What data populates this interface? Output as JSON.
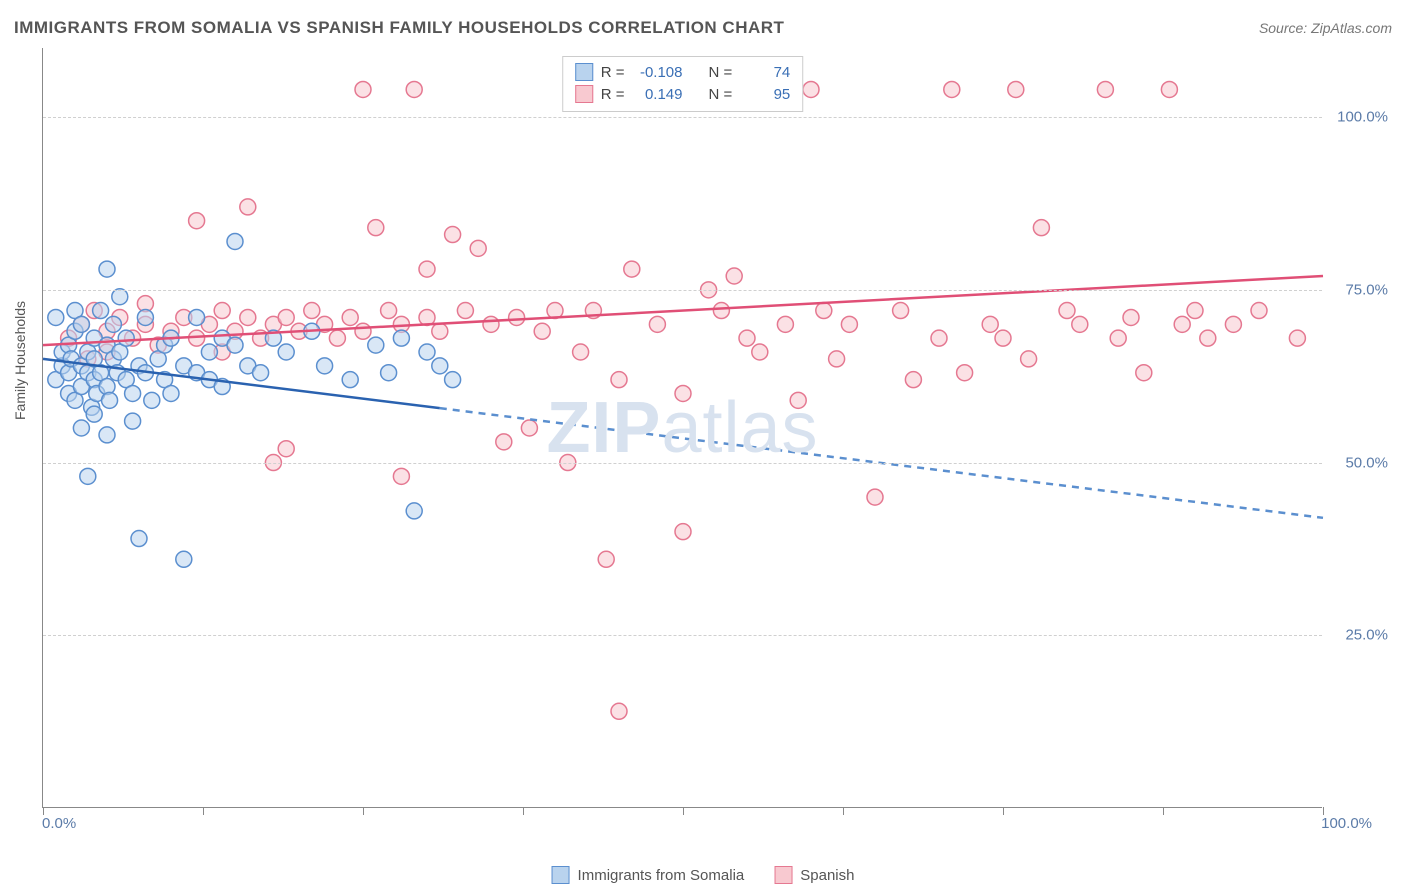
{
  "title": "IMMIGRANTS FROM SOMALIA VS SPANISH FAMILY HOUSEHOLDS CORRELATION CHART",
  "source": "Source: ZipAtlas.com",
  "watermark_a": "ZIP",
  "watermark_b": "atlas",
  "y_axis_label": "Family Households",
  "chart": {
    "type": "scatter",
    "xlim": [
      0,
      100
    ],
    "ylim": [
      0,
      110
    ],
    "x_ticks": [
      0,
      12.5,
      25,
      37.5,
      50,
      62.5,
      75,
      87.5,
      100
    ],
    "y_gridlines": [
      25,
      50,
      75,
      100
    ],
    "y_tick_labels": [
      "25.0%",
      "50.0%",
      "75.0%",
      "100.0%"
    ],
    "x_tick_labels": {
      "left": "0.0%",
      "right": "100.0%"
    },
    "background_color": "#ffffff",
    "grid_color": "#d0d0d0",
    "axis_color": "#888888",
    "marker_radius": 8,
    "marker_stroke_width": 1.5,
    "line_width": 2.5,
    "series": {
      "somalia": {
        "label": "Immigrants from Somalia",
        "fill": "#b9d3ee",
        "stroke": "#5b8fcf",
        "line_color": "#2a62b0",
        "dash_line_color": "#5b8fcf",
        "trend": {
          "x1": 0,
          "y1": 65,
          "x2": 100,
          "y2": 42
        },
        "solid_until_x": 31,
        "points": [
          [
            1,
            71
          ],
          [
            1,
            62
          ],
          [
            1.5,
            64
          ],
          [
            1.5,
            66
          ],
          [
            2,
            63
          ],
          [
            2,
            67
          ],
          [
            2,
            60
          ],
          [
            2.2,
            65
          ],
          [
            2.5,
            59
          ],
          [
            2.5,
            69
          ],
          [
            2.5,
            72
          ],
          [
            3,
            55
          ],
          [
            3,
            64
          ],
          [
            3,
            70
          ],
          [
            3,
            61
          ],
          [
            3.5,
            63
          ],
          [
            3.5,
            48
          ],
          [
            3.5,
            66
          ],
          [
            3.8,
            58
          ],
          [
            4,
            62
          ],
          [
            4,
            57
          ],
          [
            4,
            68
          ],
          [
            4,
            65
          ],
          [
            4.2,
            60
          ],
          [
            4.5,
            72
          ],
          [
            4.5,
            63
          ],
          [
            5,
            78
          ],
          [
            5,
            67
          ],
          [
            5,
            54
          ],
          [
            5,
            61
          ],
          [
            5.2,
            59
          ],
          [
            5.5,
            70
          ],
          [
            5.5,
            65
          ],
          [
            5.8,
            63
          ],
          [
            6,
            74
          ],
          [
            6,
            66
          ],
          [
            6.5,
            62
          ],
          [
            6.5,
            68
          ],
          [
            7,
            56
          ],
          [
            7,
            60
          ],
          [
            7.5,
            39
          ],
          [
            7.5,
            64
          ],
          [
            8,
            63
          ],
          [
            8,
            71
          ],
          [
            8.5,
            59
          ],
          [
            9,
            65
          ],
          [
            9.5,
            67
          ],
          [
            9.5,
            62
          ],
          [
            10,
            60
          ],
          [
            10,
            68
          ],
          [
            11,
            36
          ],
          [
            11,
            64
          ],
          [
            12,
            71
          ],
          [
            12,
            63
          ],
          [
            13,
            66
          ],
          [
            13,
            62
          ],
          [
            14,
            68
          ],
          [
            14,
            61
          ],
          [
            15,
            82
          ],
          [
            15,
            67
          ],
          [
            16,
            64
          ],
          [
            17,
            63
          ],
          [
            18,
            68
          ],
          [
            19,
            66
          ],
          [
            21,
            69
          ],
          [
            22,
            64
          ],
          [
            24,
            62
          ],
          [
            26,
            67
          ],
          [
            27,
            63
          ],
          [
            28,
            68
          ],
          [
            29,
            43
          ],
          [
            30,
            66
          ],
          [
            31,
            64
          ],
          [
            32,
            62
          ]
        ]
      },
      "spanish": {
        "label": "Spanish",
        "fill": "#f8c9d0",
        "stroke": "#e57891",
        "line_color": "#e04f76",
        "trend": {
          "x1": 0,
          "y1": 67,
          "x2": 100,
          "y2": 77
        },
        "points": [
          [
            2,
            68
          ],
          [
            3,
            70
          ],
          [
            3.5,
            65
          ],
          [
            4,
            72
          ],
          [
            5,
            69
          ],
          [
            5,
            66
          ],
          [
            6,
            71
          ],
          [
            7,
            68
          ],
          [
            8,
            70
          ],
          [
            8,
            73
          ],
          [
            9,
            67
          ],
          [
            10,
            69
          ],
          [
            11,
            71
          ],
          [
            12,
            68
          ],
          [
            12,
            85
          ],
          [
            13,
            70
          ],
          [
            14,
            72
          ],
          [
            14,
            66
          ],
          [
            15,
            69
          ],
          [
            16,
            71
          ],
          [
            16,
            87
          ],
          [
            17,
            68
          ],
          [
            18,
            70
          ],
          [
            18,
            50
          ],
          [
            19,
            52
          ],
          [
            19,
            71
          ],
          [
            20,
            69
          ],
          [
            21,
            72
          ],
          [
            22,
            70
          ],
          [
            23,
            68
          ],
          [
            24,
            71
          ],
          [
            25,
            104
          ],
          [
            25,
            69
          ],
          [
            26,
            84
          ],
          [
            27,
            72
          ],
          [
            28,
            70
          ],
          [
            28,
            48
          ],
          [
            29,
            104
          ],
          [
            30,
            78
          ],
          [
            30,
            71
          ],
          [
            31,
            69
          ],
          [
            32,
            83
          ],
          [
            33,
            72
          ],
          [
            34,
            81
          ],
          [
            35,
            70
          ],
          [
            36,
            53
          ],
          [
            37,
            71
          ],
          [
            38,
            55
          ],
          [
            39,
            69
          ],
          [
            40,
            72
          ],
          [
            41,
            50
          ],
          [
            42,
            66
          ],
          [
            43,
            72
          ],
          [
            44,
            36
          ],
          [
            45,
            62
          ],
          [
            45,
            14
          ],
          [
            46,
            78
          ],
          [
            48,
            70
          ],
          [
            50,
            60
          ],
          [
            50,
            40
          ],
          [
            52,
            75
          ],
          [
            53,
            72
          ],
          [
            54,
            77
          ],
          [
            55,
            68
          ],
          [
            56,
            66
          ],
          [
            58,
            70
          ],
          [
            59,
            59
          ],
          [
            60,
            104
          ],
          [
            61,
            72
          ],
          [
            62,
            65
          ],
          [
            63,
            70
          ],
          [
            65,
            45
          ],
          [
            67,
            72
          ],
          [
            68,
            62
          ],
          [
            70,
            68
          ],
          [
            71,
            104
          ],
          [
            72,
            63
          ],
          [
            74,
            70
          ],
          [
            75,
            68
          ],
          [
            76,
            104
          ],
          [
            77,
            65
          ],
          [
            78,
            84
          ],
          [
            80,
            72
          ],
          [
            81,
            70
          ],
          [
            83,
            104
          ],
          [
            84,
            68
          ],
          [
            85,
            71
          ],
          [
            86,
            63
          ],
          [
            88,
            104
          ],
          [
            89,
            70
          ],
          [
            90,
            72
          ],
          [
            91,
            68
          ],
          [
            93,
            70
          ],
          [
            95,
            72
          ],
          [
            98,
            68
          ]
        ]
      }
    },
    "stats": [
      {
        "series": "somalia",
        "R_label": "R =",
        "R": "-0.108",
        "N_label": "N =",
        "N": "74"
      },
      {
        "series": "spanish",
        "R_label": "R =",
        "R": "0.149",
        "N_label": "N =",
        "N": "95"
      }
    ]
  },
  "colors": {
    "tick_text": "#5b7ba8",
    "title_text": "#555555",
    "stat_val": "#3a6fb5"
  }
}
